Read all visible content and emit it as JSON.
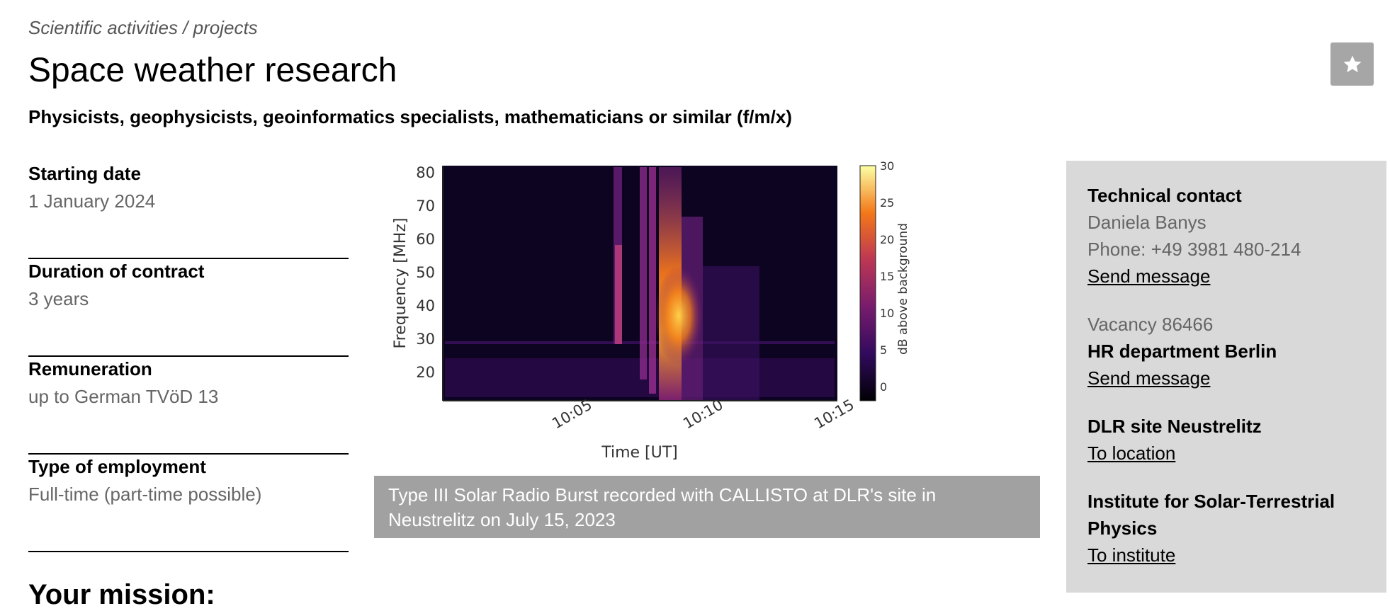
{
  "breadcrumb": "Scientific activities / projects",
  "title": "Space weather research",
  "subtitle": "Physicists, geophysicists, geoinformatics specialists, mathematicians or similar (f/m/x)",
  "favorite_icon": "star-icon",
  "facts": [
    {
      "label": "Starting date",
      "value": "1 January 2024"
    },
    {
      "label": "Duration of contract",
      "value": "3 years"
    },
    {
      "label": "Remuneration",
      "value": "up to German TVöD 13"
    },
    {
      "label": "Type of employment",
      "value": "Full-time (part-time possible)"
    }
  ],
  "figure": {
    "caption": "Type III Solar Radio Burst recorded with CALLISTO at DLR's site in Neustrelitz on July 15, 2023",
    "ylabel": "Frequency [MHz]",
    "xlabel": "Time [UT]",
    "yticks": [
      "80",
      "70",
      "60",
      "50",
      "40",
      "30",
      "20"
    ],
    "xticks": [
      "10:05",
      "10:10",
      "10:15"
    ],
    "colorbar_label": "dB above background",
    "colorbar_ticks": [
      "30",
      "25",
      "20",
      "15",
      "10",
      "5",
      "0"
    ]
  },
  "contact": {
    "technical_heading": "Technical contact",
    "technical_name": "Daniela Banys",
    "technical_phone": "Phone: +49 3981 480-214",
    "technical_link": "Send message",
    "vacancy": "Vacancy 86466",
    "hr_heading": "HR department Berlin",
    "hr_link": "Send message",
    "site_heading": "DLR site Neustrelitz",
    "site_link": "To location",
    "institute_heading": "Institute for Solar-Terrestrial Physics",
    "institute_link": "To institute"
  },
  "mission_heading": "Your mission:",
  "colors": {
    "sidebox_bg": "#d9d9d9",
    "caption_bg": "#8c8c8c",
    "fav_btn_bg": "#a6a6a6"
  }
}
